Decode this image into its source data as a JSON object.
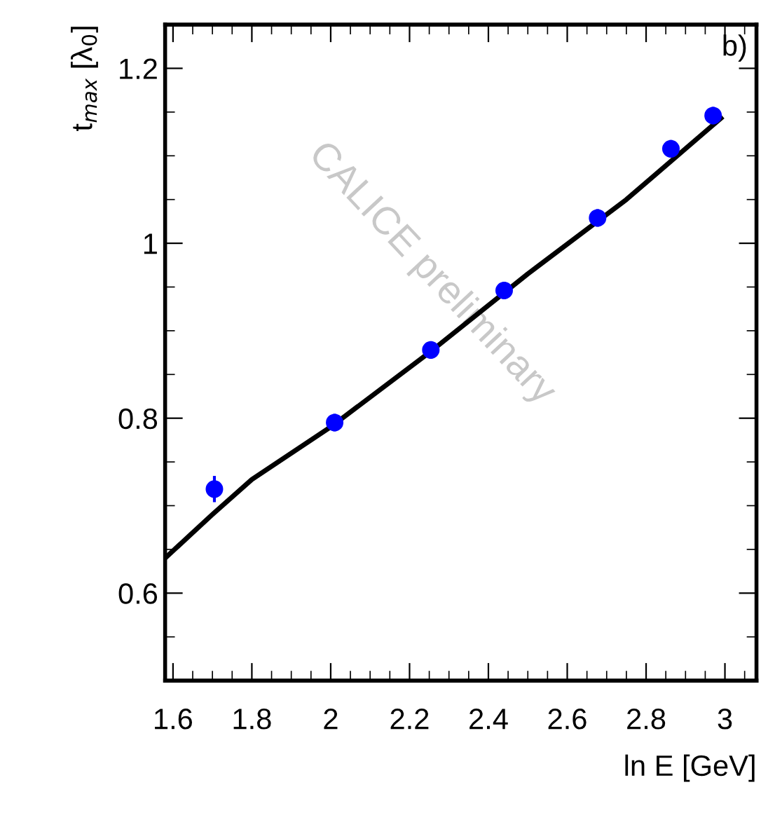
{
  "chart_data": {
    "type": "scatter",
    "xlabel": "ln E [GeV]",
    "ylabel": "t$_{max}$ [λ$_{0}$]",
    "annotations": [
      "b)",
      "CALICE preliminary"
    ],
    "xlim": [
      1.58,
      3.08
    ],
    "ylim": [
      0.5,
      1.25
    ],
    "xticks": [
      1.6,
      1.8,
      2,
      2.2,
      2.4,
      2.6,
      2.8,
      3
    ],
    "yticks": [
      0.6,
      0.8,
      1,
      1.2
    ],
    "grid": false,
    "series": [
      {
        "color": "#0000ff",
        "marker": "circle",
        "x": [
          1.705,
          2.01,
          2.254,
          2.44,
          2.677,
          2.863,
          2.97
        ],
        "values": [
          0.719,
          0.795,
          0.878,
          0.946,
          1.029,
          1.108,
          1.146
        ],
        "errors": [
          0.015,
          0.01,
          0.01,
          0.01,
          0.01,
          0.01,
          0.01
        ]
      },
      {
        "type": "line",
        "color": "#000000",
        "marker": "none",
        "line_style": "solid",
        "x": [
          1.58,
          1.7,
          1.8,
          2.0,
          2.25,
          2.5,
          2.75,
          2.99
        ],
        "values": [
          0.64,
          0.69,
          0.73,
          0.79,
          0.875,
          0.965,
          1.05,
          1.143
        ]
      }
    ]
  }
}
